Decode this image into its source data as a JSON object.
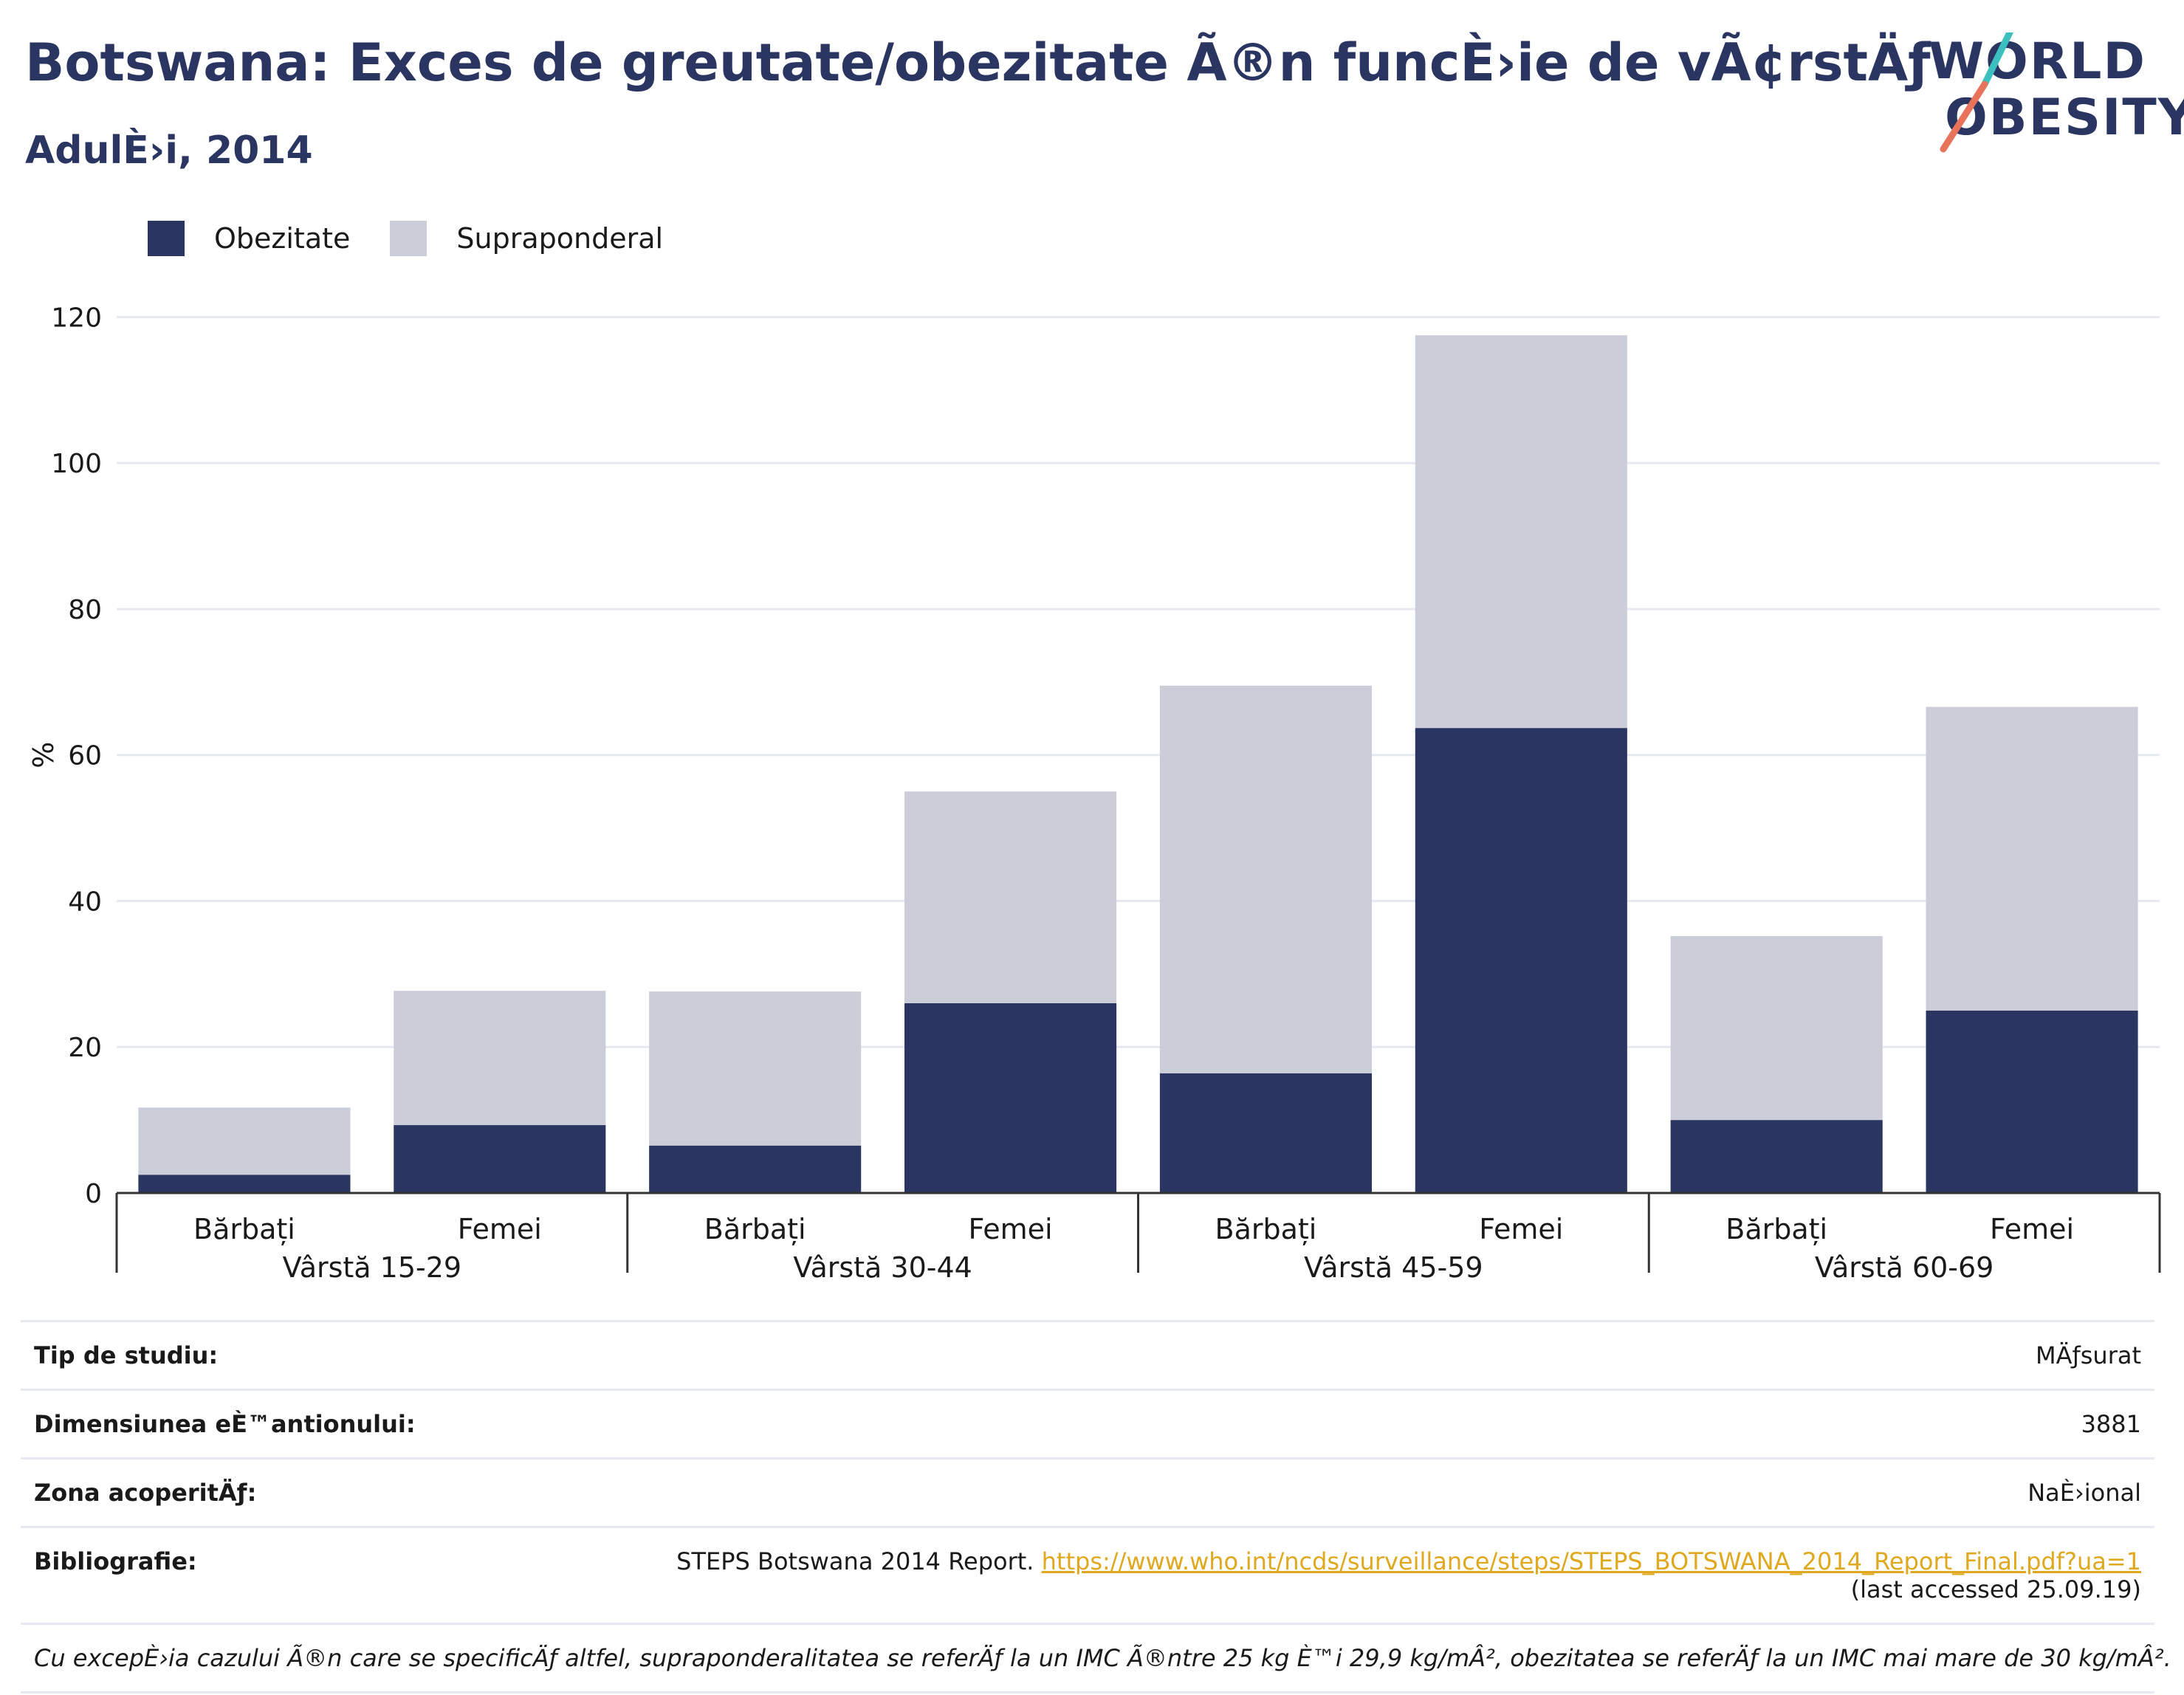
{
  "header": {
    "title": "Botswana: Exces de greutate/obezitate Ã®n funcÈ›ie de vÃ¢rstÄƒ",
    "subtitle": "AdulÈ›i, 2014"
  },
  "logo": {
    "line1": "WORLD",
    "line2": "OBESITY",
    "icon": "slash-mark-icon"
  },
  "colors": {
    "obezitate": "#2a3561",
    "supraponderal": "#cbcdd8",
    "grid": "#e6e8f2",
    "axis": "#333333",
    "link": "#e0a81e",
    "logo_teal": "#3bbfbf",
    "logo_coral": "#e8735a"
  },
  "chart_data": {
    "type": "bar",
    "stacked": true,
    "ylabel": "%",
    "ylim": [
      0,
      125
    ],
    "yticks": [
      0,
      20,
      40,
      60,
      80,
      100,
      120
    ],
    "grid": true,
    "legend_position": "top-left",
    "categories": [
      "Bărbați",
      "Femei",
      "Bărbați",
      "Femei",
      "Bărbați",
      "Femei",
      "Bărbați",
      "Femei"
    ],
    "groups": [
      {
        "label": "Vârstă 15-29",
        "span": 2
      },
      {
        "label": "Vârstă 30-44",
        "span": 2
      },
      {
        "label": "Vârstă 45-59",
        "span": 2
      },
      {
        "label": "Vârstă 60-69",
        "span": 2
      }
    ],
    "series": [
      {
        "name": "Obezitate",
        "values": [
          2.5,
          9.3,
          6.5,
          26.0,
          16.4,
          63.7,
          10.0,
          25.0
        ]
      },
      {
        "name": "Supraponderal",
        "values": [
          9.2,
          18.4,
          21.1,
          29.0,
          53.1,
          53.8,
          25.2,
          41.6
        ]
      }
    ]
  },
  "meta": {
    "rows": [
      {
        "label": "Tip de studiu:",
        "value": "MÄƒsurat"
      },
      {
        "label": "Dimensiunea eÈ™antionului:",
        "value": "3881"
      },
      {
        "label": "Zona acoperitÄƒ:",
        "value": "NaÈ›ional"
      }
    ],
    "bibliography": {
      "label": "Bibliografie:",
      "text_before": "STEPS Botswana 2014 Report. ",
      "link": "https://www.who.int/ncds/surveillance/steps/STEPS_BOTSWANA_2014_Report_Final.pdf?ua=1",
      "text_after": " (last accessed 25.09.19)"
    },
    "footnote": "Cu excepÈ›ia cazului Ã®n care se specificÄƒ altfel, supraponderalitatea se referÄƒ la un IMC Ã®ntre 25 kg È™i 29,9 kg/mÂ², obezitatea se referÄƒ la un IMC mai mare de 30 kg/mÂ²."
  }
}
